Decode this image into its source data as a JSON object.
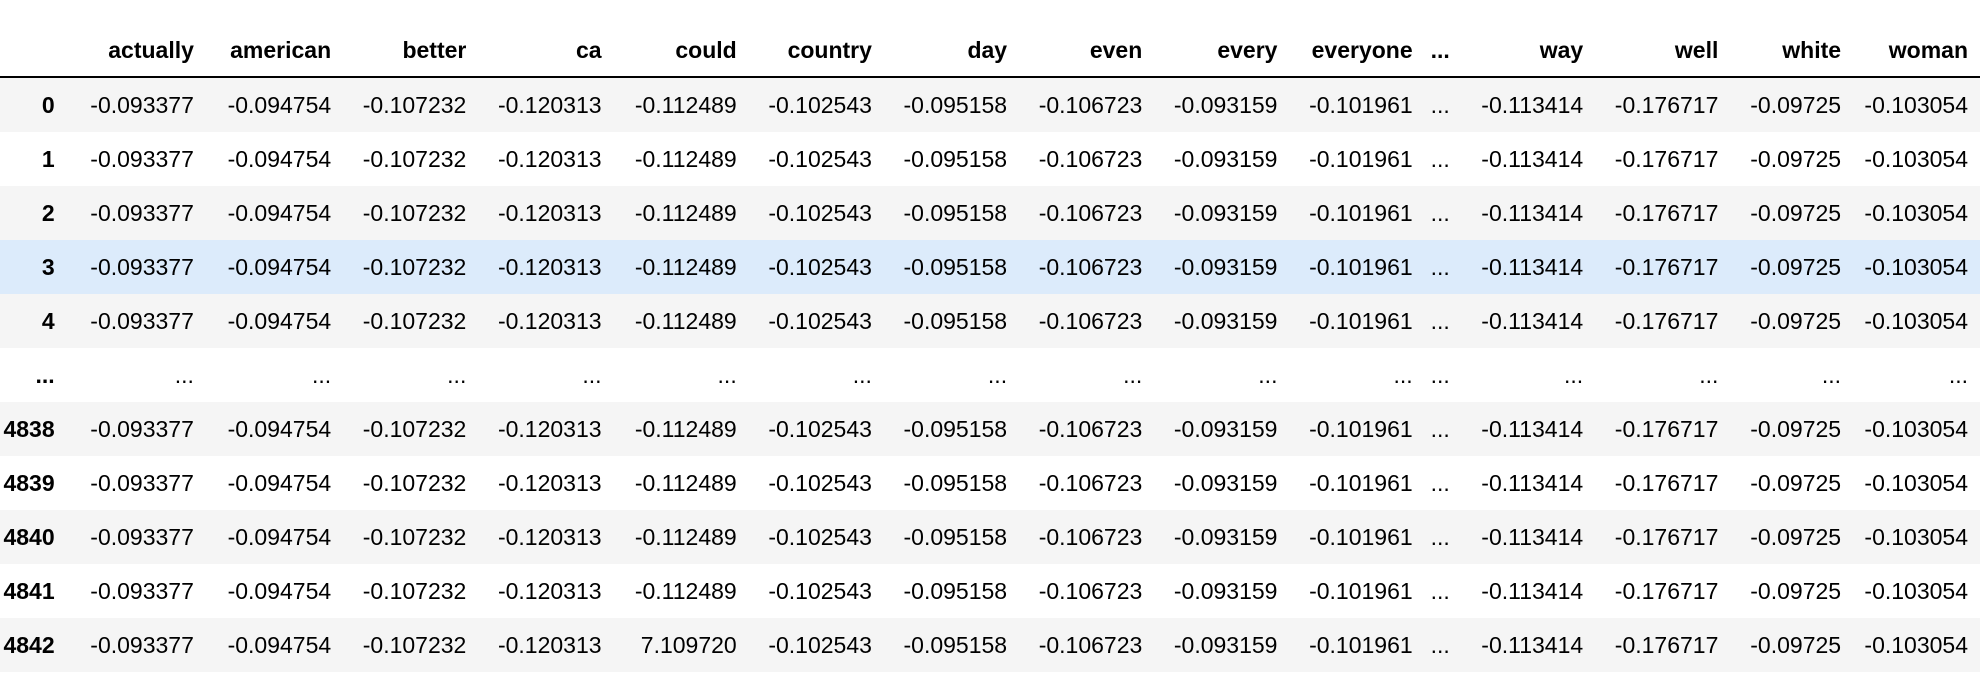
{
  "table": {
    "index_header": "",
    "columns": [
      "actually",
      "american",
      "better",
      "ca",
      "could",
      "country",
      "day",
      "even",
      "every",
      "everyone",
      "...",
      "way",
      "well",
      "white",
      "woman"
    ],
    "rows": [
      {
        "index": "0",
        "values": [
          "-0.093377",
          "-0.094754",
          "-0.107232",
          "-0.120313",
          "-0.112489",
          "-0.102543",
          "-0.095158",
          "-0.106723",
          "-0.093159",
          "-0.101961",
          "...",
          "-0.113414",
          "-0.176717",
          "-0.09725",
          "-0.103054"
        ]
      },
      {
        "index": "1",
        "values": [
          "-0.093377",
          "-0.094754",
          "-0.107232",
          "-0.120313",
          "-0.112489",
          "-0.102543",
          "-0.095158",
          "-0.106723",
          "-0.093159",
          "-0.101961",
          "...",
          "-0.113414",
          "-0.176717",
          "-0.09725",
          "-0.103054"
        ]
      },
      {
        "index": "2",
        "values": [
          "-0.093377",
          "-0.094754",
          "-0.107232",
          "-0.120313",
          "-0.112489",
          "-0.102543",
          "-0.095158",
          "-0.106723",
          "-0.093159",
          "-0.101961",
          "...",
          "-0.113414",
          "-0.176717",
          "-0.09725",
          "-0.103054"
        ]
      },
      {
        "index": "3",
        "values": [
          "-0.093377",
          "-0.094754",
          "-0.107232",
          "-0.120313",
          "-0.112489",
          "-0.102543",
          "-0.095158",
          "-0.106723",
          "-0.093159",
          "-0.101961",
          "...",
          "-0.113414",
          "-0.176717",
          "-0.09725",
          "-0.103054"
        ]
      },
      {
        "index": "4",
        "values": [
          "-0.093377",
          "-0.094754",
          "-0.107232",
          "-0.120313",
          "-0.112489",
          "-0.102543",
          "-0.095158",
          "-0.106723",
          "-0.093159",
          "-0.101961",
          "...",
          "-0.113414",
          "-0.176717",
          "-0.09725",
          "-0.103054"
        ]
      },
      {
        "index": "...",
        "values": [
          "...",
          "...",
          "...",
          "...",
          "...",
          "...",
          "...",
          "...",
          "...",
          "...",
          "...",
          "...",
          "...",
          "...",
          "..."
        ]
      },
      {
        "index": "4838",
        "values": [
          "-0.093377",
          "-0.094754",
          "-0.107232",
          "-0.120313",
          "-0.112489",
          "-0.102543",
          "-0.095158",
          "-0.106723",
          "-0.093159",
          "-0.101961",
          "...",
          "-0.113414",
          "-0.176717",
          "-0.09725",
          "-0.103054"
        ]
      },
      {
        "index": "4839",
        "values": [
          "-0.093377",
          "-0.094754",
          "-0.107232",
          "-0.120313",
          "-0.112489",
          "-0.102543",
          "-0.095158",
          "-0.106723",
          "-0.093159",
          "-0.101961",
          "...",
          "-0.113414",
          "-0.176717",
          "-0.09725",
          "-0.103054"
        ]
      },
      {
        "index": "4840",
        "values": [
          "-0.093377",
          "-0.094754",
          "-0.107232",
          "-0.120313",
          "-0.112489",
          "-0.102543",
          "-0.095158",
          "-0.106723",
          "-0.093159",
          "-0.101961",
          "...",
          "-0.113414",
          "-0.176717",
          "-0.09725",
          "-0.103054"
        ]
      },
      {
        "index": "4841",
        "values": [
          "-0.093377",
          "-0.094754",
          "-0.107232",
          "-0.120313",
          "-0.112489",
          "-0.102543",
          "-0.095158",
          "-0.106723",
          "-0.093159",
          "-0.101961",
          "...",
          "-0.113414",
          "-0.176717",
          "-0.09725",
          "-0.103054"
        ]
      },
      {
        "index": "4842",
        "values": [
          "-0.093377",
          "-0.094754",
          "-0.107232",
          "-0.120313",
          "7.109720",
          "-0.102543",
          "-0.095158",
          "-0.106723",
          "-0.093159",
          "-0.101961",
          "...",
          "-0.113414",
          "-0.176717",
          "-0.09725",
          "-0.103054"
        ]
      }
    ],
    "highlighted_row_index": "3"
  },
  "colors": {
    "stripe": "#f5f5f5",
    "hover_highlight": "#dcebfb",
    "header_rule": "#000000"
  }
}
